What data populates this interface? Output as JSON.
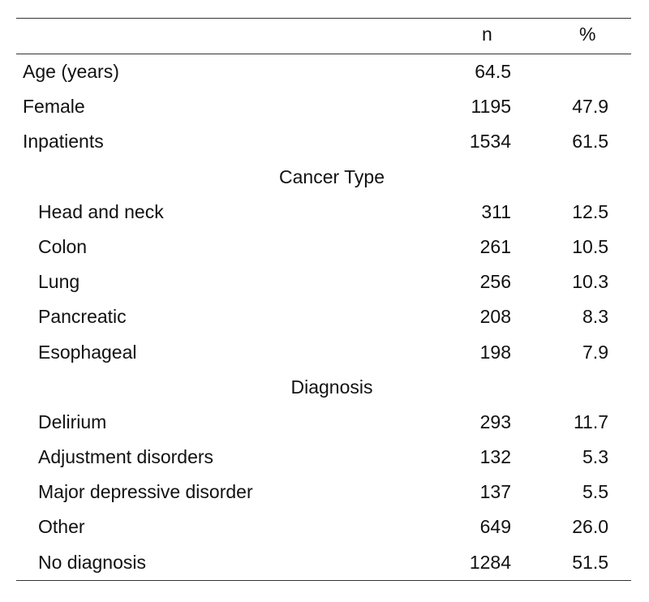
{
  "header": {
    "n": "n",
    "pct": "%"
  },
  "rows": [
    {
      "type": "row",
      "label": "Age (years)",
      "n": "64.5",
      "pct": ""
    },
    {
      "type": "row",
      "label": "Female",
      "n": "1195",
      "pct": "47.9"
    },
    {
      "type": "row",
      "label": "Inpatients",
      "n": "1534",
      "pct": "61.5"
    },
    {
      "type": "section",
      "label": "Cancer Type"
    },
    {
      "type": "row",
      "indent": true,
      "label": "Head and neck",
      "n": "311",
      "pct": "12.5"
    },
    {
      "type": "row",
      "indent": true,
      "label": "Colon",
      "n": "261",
      "pct": "10.5"
    },
    {
      "type": "row",
      "indent": true,
      "label": "Lung",
      "n": "256",
      "pct": "10.3"
    },
    {
      "type": "row",
      "indent": true,
      "label": "Pancreatic",
      "n": "208",
      "pct": "8.3"
    },
    {
      "type": "row",
      "indent": true,
      "label": "Esophageal",
      "n": "198",
      "pct": "7.9"
    },
    {
      "type": "section",
      "label": "Diagnosis"
    },
    {
      "type": "row",
      "indent": true,
      "label": "Delirium",
      "n": "293",
      "pct": "11.7"
    },
    {
      "type": "row",
      "indent": true,
      "label": "Adjustment disorders",
      "n": "132",
      "pct": "5.3"
    },
    {
      "type": "row",
      "indent": true,
      "label": "Major depressive disorder",
      "n": "137",
      "pct": "5.5"
    },
    {
      "type": "row",
      "indent": true,
      "label": "Other",
      "n": "649",
      "pct": "26.0"
    },
    {
      "type": "row",
      "indent": true,
      "label": "No diagnosis",
      "n": "1284",
      "pct": "51.5"
    }
  ]
}
